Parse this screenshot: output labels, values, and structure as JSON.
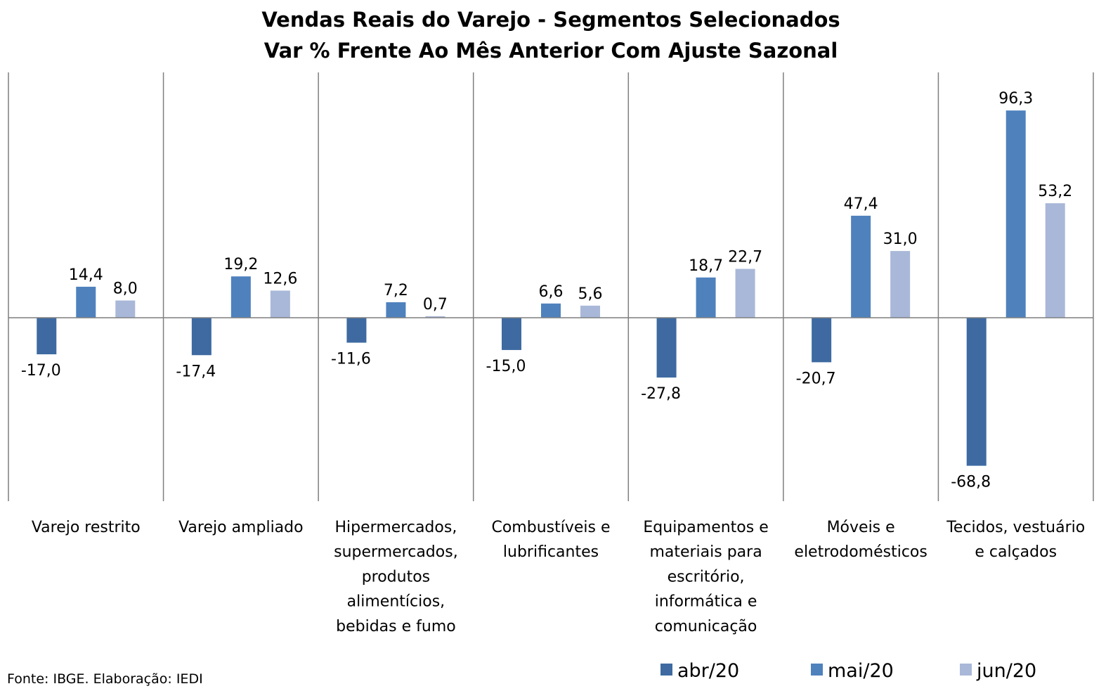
{
  "chart_data": {
    "type": "bar",
    "title": [
      "Vendas Reais do Varejo - Segmentos Selecionados",
      "Var % Frente Ao Mês Anterior Com Ajuste Sazonal"
    ],
    "categories": [
      [
        "Varejo restrito"
      ],
      [
        "Varejo ampliado"
      ],
      [
        "Hipermercados,",
        "supermercados,",
        "produtos",
        "alimentícios,",
        "bebidas e fumo"
      ],
      [
        "Combustíveis e",
        "lubrificantes"
      ],
      [
        "Equipamentos e",
        "materiais para",
        "escritório,",
        "informática e",
        "comunicação"
      ],
      [
        "Móveis e",
        "eletrodomésticos"
      ],
      [
        "Tecidos, vestuário",
        "e calçados"
      ]
    ],
    "series": [
      {
        "name": "abr/20",
        "color": "#3e6aa1",
        "values": [
          -17.0,
          -17.4,
          -11.6,
          -15.0,
          -27.8,
          -20.7,
          -68.8
        ],
        "labels": [
          "-17,0",
          "-17,4",
          "-11,6",
          "-15,0",
          "-27,8",
          "-20,7",
          "-68,8"
        ]
      },
      {
        "name": "mai/20",
        "color": "#4f81bd",
        "values": [
          14.4,
          19.2,
          7.2,
          6.6,
          18.7,
          47.4,
          96.3
        ],
        "labels": [
          "14,4",
          "19,2",
          "7,2",
          "6,6",
          "18,7",
          "47,4",
          "96,3"
        ]
      },
      {
        "name": "jun/20",
        "color": "#a9b8d8",
        "values": [
          8.0,
          12.6,
          0.7,
          5.6,
          22.7,
          31.0,
          53.2
        ],
        "labels": [
          "8,0",
          "12,6",
          "0,7",
          "5,6",
          "22,7",
          "31,0",
          "53,2"
        ]
      }
    ],
    "ylim": [
      -83.5,
      114
    ],
    "legend": "bottom-right",
    "grid": false
  },
  "source": "Fonte: IBGE. Elaboração: IEDI"
}
